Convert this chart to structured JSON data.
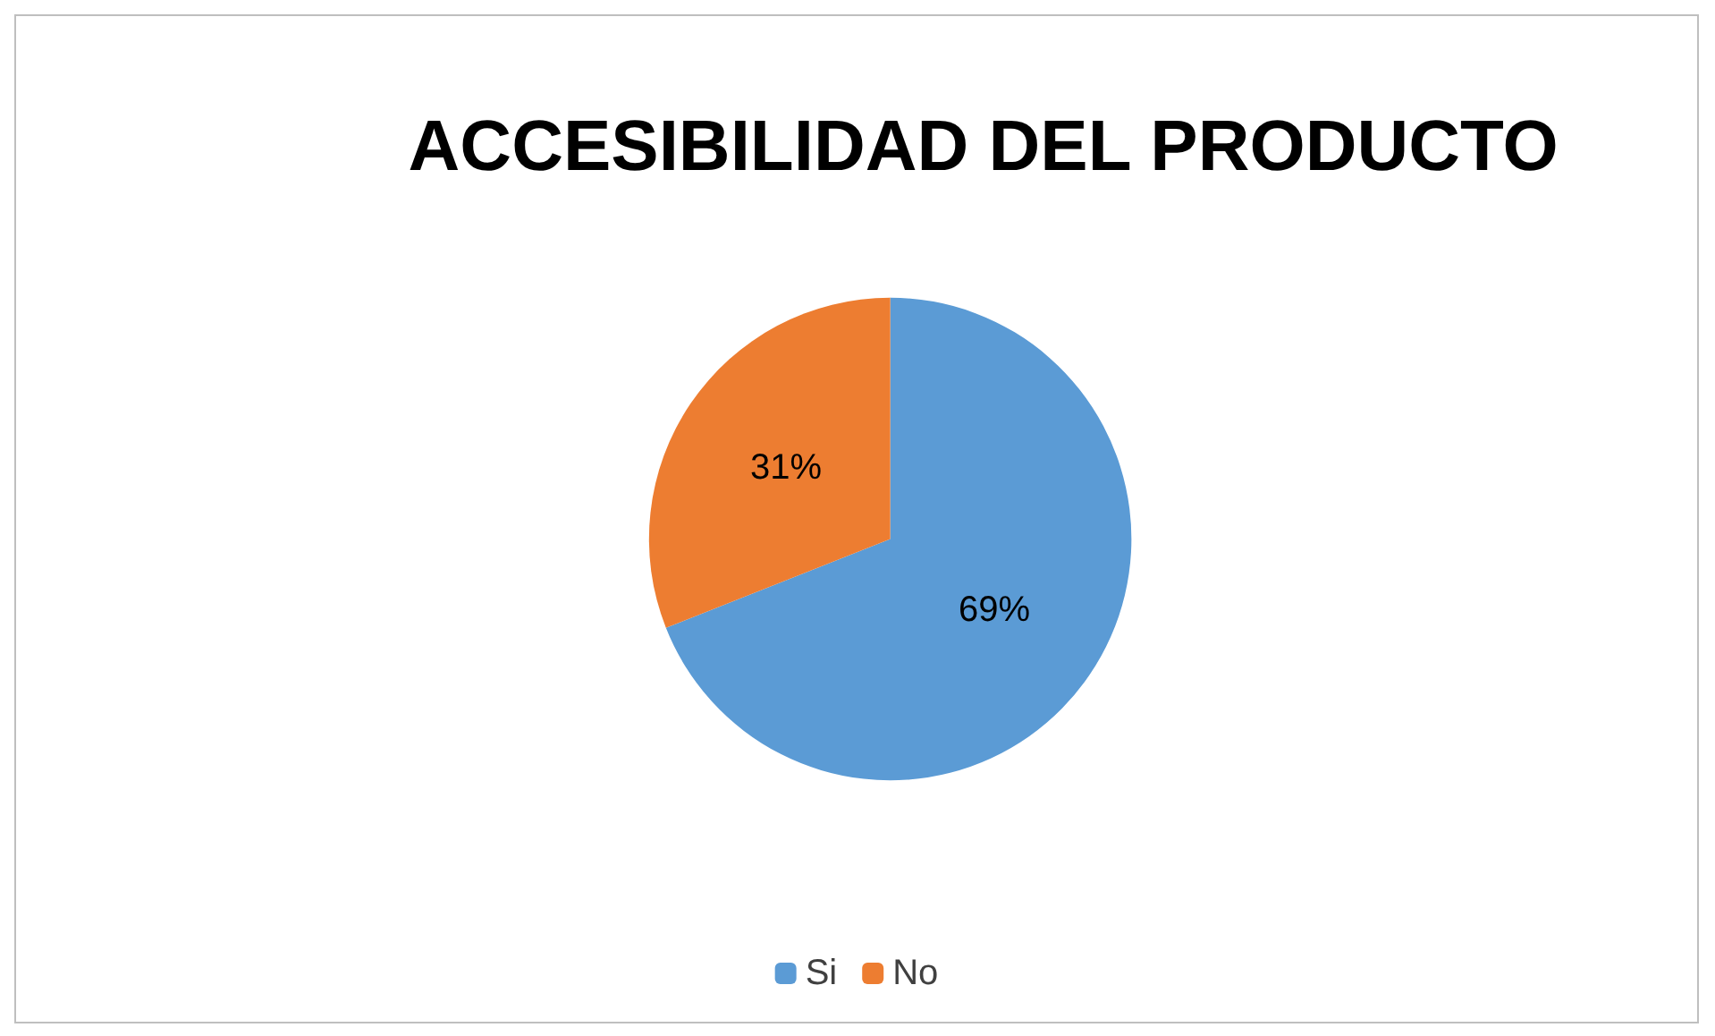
{
  "chart_data": {
    "type": "pie",
    "title": "ACCESIBILIDAD DEL PRODUCTO",
    "categories": [
      "Si",
      "No"
    ],
    "values": [
      69,
      31
    ],
    "colors": [
      "#5b9bd5",
      "#ed7d31"
    ],
    "value_labels": [
      "69%",
      "31%"
    ],
    "legend": "bottom"
  }
}
